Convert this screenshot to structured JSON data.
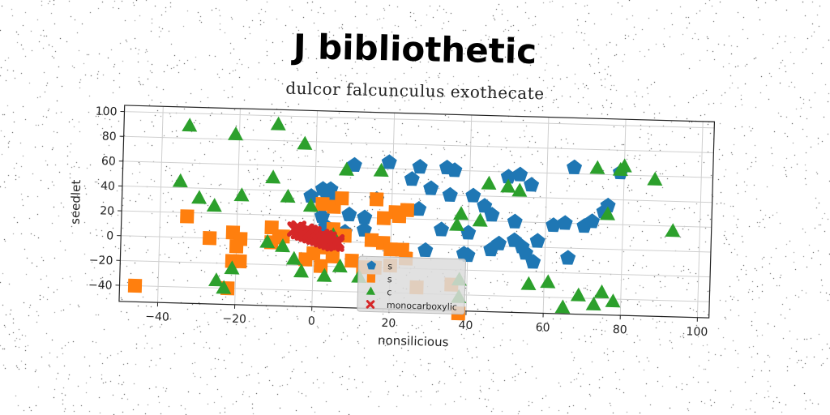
{
  "chart_data": {
    "type": "scatter",
    "title": "J bibliothetic",
    "subtitle": "dulcor falcunculus exothecate",
    "xlabel": "nonsilicious",
    "ylabel": "seedlet",
    "xlim": [
      -50,
      103
    ],
    "ylim": [
      -53,
      105
    ],
    "xticks": [
      -40,
      -20,
      0,
      20,
      40,
      60,
      80,
      100
    ],
    "yticks": [
      -40,
      -20,
      0,
      20,
      40,
      60,
      80,
      100
    ],
    "grid": true,
    "legend_position": "bottom-center",
    "series": [
      {
        "name": "s",
        "marker": "pentagon",
        "color": "#1f77b4",
        "points": [
          [
            10,
            62
          ],
          [
            19,
            65
          ],
          [
            27,
            62
          ],
          [
            34,
            62
          ],
          [
            36,
            60
          ],
          [
            25,
            52
          ],
          [
            30,
            45
          ],
          [
            41,
            40
          ],
          [
            35,
            40
          ],
          [
            2,
            42
          ],
          [
            4,
            42
          ],
          [
            3,
            38
          ],
          [
            5,
            35
          ],
          [
            -1,
            36
          ],
          [
            16,
            35
          ],
          [
            27,
            28
          ],
          [
            44,
            32
          ],
          [
            46,
            25
          ],
          [
            40,
            10
          ],
          [
            33,
            12
          ],
          [
            13,
            20
          ],
          [
            9,
            22
          ],
          [
            2,
            20
          ],
          [
            3,
            12
          ],
          [
            8,
            8
          ],
          [
            13,
            10
          ],
          [
            5,
            0
          ],
          [
            29,
            -5
          ],
          [
            39,
            -7
          ],
          [
            48,
            2
          ],
          [
            52,
            5
          ],
          [
            54,
            0
          ],
          [
            55,
            -5
          ],
          [
            57,
            -12
          ],
          [
            58,
            5
          ],
          [
            62,
            18
          ],
          [
            65,
            20
          ],
          [
            70,
            18
          ],
          [
            72,
            22
          ],
          [
            75,
            30
          ],
          [
            76,
            35
          ],
          [
            66,
            -8
          ],
          [
            67,
            65
          ],
          [
            79,
            62
          ],
          [
            53,
            58
          ],
          [
            56,
            50
          ],
          [
            50,
            56
          ],
          [
            52,
            20
          ],
          [
            46,
            -3
          ],
          [
            40,
            -8
          ]
        ]
      },
      {
        "name": "s",
        "marker": "square",
        "color": "#ff7f0e",
        "points": [
          [
            -33,
            17
          ],
          [
            -27,
            0
          ],
          [
            -21,
            5
          ],
          [
            -19,
            0
          ],
          [
            -20,
            -6
          ],
          [
            -21,
            -18
          ],
          [
            -19,
            -18
          ],
          [
            -22,
            -40
          ],
          [
            -46,
            -40
          ],
          [
            -11,
            10
          ],
          [
            -9,
            2
          ],
          [
            -11,
            -2
          ],
          [
            -8,
            3
          ],
          [
            2,
            30
          ],
          [
            5,
            28
          ],
          [
            7,
            35
          ],
          [
            16,
            35
          ],
          [
            18,
            20
          ],
          [
            21,
            25
          ],
          [
            24,
            27
          ],
          [
            22,
            22
          ],
          [
            5,
            10
          ],
          [
            8,
            5
          ],
          [
            3,
            -5
          ],
          [
            0,
            -10
          ],
          [
            -2,
            -15
          ],
          [
            2,
            -20
          ],
          [
            5,
            -12
          ],
          [
            10,
            -15
          ],
          [
            13,
            -20
          ],
          [
            15,
            2
          ],
          [
            18,
            0
          ],
          [
            20,
            -5
          ],
          [
            23,
            -5
          ],
          [
            24,
            -12
          ],
          [
            20,
            -18
          ],
          [
            16,
            -20
          ],
          [
            27,
            -35
          ],
          [
            36,
            -32
          ],
          [
            38,
            -55
          ]
        ]
      },
      {
        "name": "c",
        "marker": "triangle",
        "color": "#2ca02c",
        "points": [
          [
            -33,
            90
          ],
          [
            -21,
            84
          ],
          [
            -10,
            93
          ],
          [
            -3,
            78
          ],
          [
            8,
            58
          ],
          [
            17,
            58
          ],
          [
            -11,
            50
          ],
          [
            -35,
            45
          ],
          [
            -30,
            32
          ],
          [
            -26,
            26
          ],
          [
            -19,
            35
          ],
          [
            -7,
            35
          ],
          [
            -1,
            28
          ],
          [
            38,
            25
          ],
          [
            43,
            20
          ],
          [
            37,
            16
          ],
          [
            45,
            50
          ],
          [
            50,
            48
          ],
          [
            53,
            45
          ],
          [
            73,
            65
          ],
          [
            79,
            64
          ],
          [
            80,
            67
          ],
          [
            88,
            57
          ],
          [
            93,
            16
          ],
          [
            76,
            28
          ],
          [
            -12,
            -2
          ],
          [
            -8,
            -5
          ],
          [
            -5,
            -15
          ],
          [
            -3,
            -25
          ],
          [
            3,
            -28
          ],
          [
            7,
            -20
          ],
          [
            12,
            -28
          ],
          [
            5,
            5
          ],
          [
            -25,
            -34
          ],
          [
            -23,
            -40
          ],
          [
            -21,
            -24
          ],
          [
            38,
            -28
          ],
          [
            38,
            -42
          ],
          [
            56,
            -30
          ],
          [
            61,
            -28
          ],
          [
            65,
            -48
          ],
          [
            69,
            -38
          ],
          [
            75,
            -35
          ],
          [
            73,
            -45
          ],
          [
            78,
            -42
          ]
        ]
      },
      {
        "name": "monocarboxylic",
        "marker": "x",
        "color": "#d62728",
        "points": [
          [
            -5,
            9
          ],
          [
            -4,
            7
          ],
          [
            -3,
            6
          ],
          [
            -2,
            5
          ],
          [
            -1,
            4
          ],
          [
            0,
            3
          ],
          [
            1,
            2
          ],
          [
            2,
            1
          ],
          [
            3,
            0
          ],
          [
            4,
            -1
          ],
          [
            5,
            -2
          ],
          [
            6,
            -2
          ],
          [
            -4,
            10
          ],
          [
            -2,
            8
          ],
          [
            0,
            6
          ],
          [
            2,
            4
          ],
          [
            4,
            2
          ],
          [
            6,
            0
          ],
          [
            -1,
            7
          ],
          [
            3,
            3
          ]
        ]
      }
    ]
  }
}
